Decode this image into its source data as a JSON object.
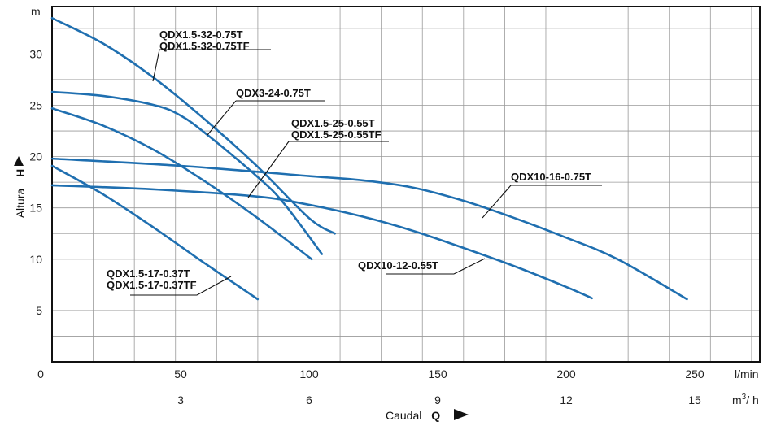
{
  "chart_data": {
    "type": "line",
    "title": "",
    "xlabel": "Caudal",
    "xlabel_symbol": "Q",
    "ylabel": "Altura",
    "ylabel_symbol": "H",
    "y_unit": "m",
    "x_unit_primary": "l/min",
    "x_unit_secondary": "m³/h",
    "x_unit_secondary_base": "m",
    "x_unit_secondary_sup": "3",
    "x_unit_secondary_tail": "/ h",
    "xlim": [
      0,
      275
    ],
    "ylim": [
      0,
      34
    ],
    "grid": true,
    "x_ticks_lmin": [
      "0",
      "50",
      "100",
      "150",
      "200",
      "250"
    ],
    "x_ticks_m3h": [
      "3",
      "6",
      "9",
      "12",
      "15"
    ],
    "y_ticks": [
      "5",
      "10",
      "15",
      "20",
      "25",
      "30"
    ],
    "series": [
      {
        "name": "QDX1.5-32-0.75T / QDX1.5-32-0.75TF",
        "x": [
          0,
          20,
          40,
          60,
          80,
          100,
          110
        ],
        "y": [
          33.5,
          31.0,
          27.6,
          23.5,
          19.0,
          14.0,
          12.5
        ]
      },
      {
        "name": "QDX3-24-0.75T",
        "x": [
          0,
          20,
          40,
          50,
          60,
          80,
          90,
          105
        ],
        "y": [
          26.3,
          25.9,
          25.0,
          24.0,
          22.2,
          18.0,
          15.5,
          10.5
        ]
      },
      {
        "name": "QDX1.5-25-0.55T / QDX1.5-25-0.55TF",
        "x": [
          0,
          20,
          40,
          60,
          80,
          101
        ],
        "y": [
          24.7,
          23.0,
          20.6,
          17.5,
          14.0,
          10.0
        ]
      },
      {
        "name": "QDX10-16-0.75T",
        "x": [
          0,
          50,
          100,
          120,
          140,
          160,
          180,
          200,
          220,
          247
        ],
        "y": [
          19.8,
          19.1,
          18.1,
          17.7,
          17.0,
          15.7,
          14.0,
          12.1,
          10.0,
          6.1
        ]
      },
      {
        "name": "QDX10-12-0.55T",
        "x": [
          0,
          40,
          80,
          100,
          120,
          140,
          160,
          180,
          200,
          210
        ],
        "y": [
          17.2,
          16.8,
          16.1,
          15.3,
          14.2,
          12.8,
          11.1,
          9.3,
          7.3,
          6.2
        ]
      },
      {
        "name": "QDX1.5-17-0.37T / QDX1.5-17-0.37TF",
        "x": [
          0,
          20,
          40,
          60,
          80
        ],
        "y": [
          19.1,
          16.3,
          13.0,
          9.5,
          6.1
        ]
      }
    ],
    "labels": [
      {
        "lines": [
          "QDX1.5-32-0.75T",
          "QDX1.5-32-0.75TF"
        ]
      },
      {
        "lines": [
          "QDX3-24-0.75T"
        ]
      },
      {
        "lines": [
          "QDX1.5-25-0.55T",
          "QDX1.5-25-0.55TF"
        ]
      },
      {
        "lines": [
          "QDX10-16-0.75T"
        ]
      },
      {
        "lines": [
          "QDX10-12-0.55T"
        ]
      },
      {
        "lines": [
          "QDX1.5-17-0.37T",
          "QDX1.5-17-0.37TF"
        ]
      }
    ],
    "colors": {
      "curve": "#1f6fb0",
      "grid": "#9a9a9a",
      "frame": "#111111"
    }
  }
}
